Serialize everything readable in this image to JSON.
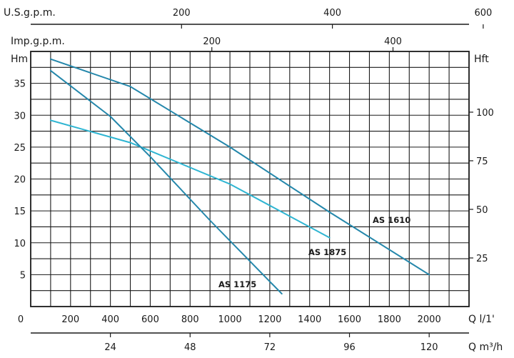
{
  "chart_data": {
    "type": "line",
    "title": "",
    "grid": true,
    "x_axis": {
      "label": "Q l/1'",
      "range": [
        0,
        2200
      ],
      "ticks": [
        "0",
        "200",
        "400",
        "600",
        "800",
        "1000",
        "1200",
        "1400",
        "1600",
        "1800",
        "2000"
      ]
    },
    "y_axis_left": {
      "label": "Hm",
      "range": [
        0,
        40
      ],
      "ticks": [
        "5",
        "10",
        "15",
        "20",
        "25",
        "30",
        "35"
      ]
    },
    "y_axis_right": {
      "label": "Hft",
      "tick_values_m": [
        7.62,
        15.24,
        22.86,
        30.48
      ],
      "ticks": [
        "25",
        "50",
        "75",
        "100"
      ]
    },
    "top_axis_1": {
      "label": "U.S.g.p.m.",
      "ticks": [
        "200",
        "400",
        "600"
      ],
      "tick_values_lmin": [
        757.1,
        1514.2,
        2271.2
      ]
    },
    "top_axis_2": {
      "label": "Imp.g.p.m.",
      "ticks": [
        "200",
        "400"
      ],
      "tick_values_lmin": [
        909.2,
        1818.4
      ]
    },
    "bottom_axis": {
      "label": "Q m³/h",
      "ticks": [
        "24",
        "48",
        "72",
        "96",
        "120"
      ],
      "tick_values_lmin": [
        400,
        800,
        1200,
        1600,
        2000
      ]
    },
    "series": [
      {
        "name": "AS 1610",
        "color": "#2487ab",
        "x": [
          100,
          500,
          1000,
          1500,
          2000
        ],
        "y": [
          38.8,
          34.5,
          25,
          14.8,
          5
        ]
      },
      {
        "name": "AS 1875",
        "color": "#2fb5d2",
        "x": [
          100,
          500,
          1000,
          1500
        ],
        "y": [
          29.2,
          25.7,
          19.2,
          10.8
        ]
      },
      {
        "name": "AS 1175",
        "color": "#2487ab",
        "x": [
          100,
          400,
          600,
          900,
          1260
        ],
        "y": [
          37,
          29.8,
          23.5,
          13.5,
          2
        ]
      }
    ]
  }
}
